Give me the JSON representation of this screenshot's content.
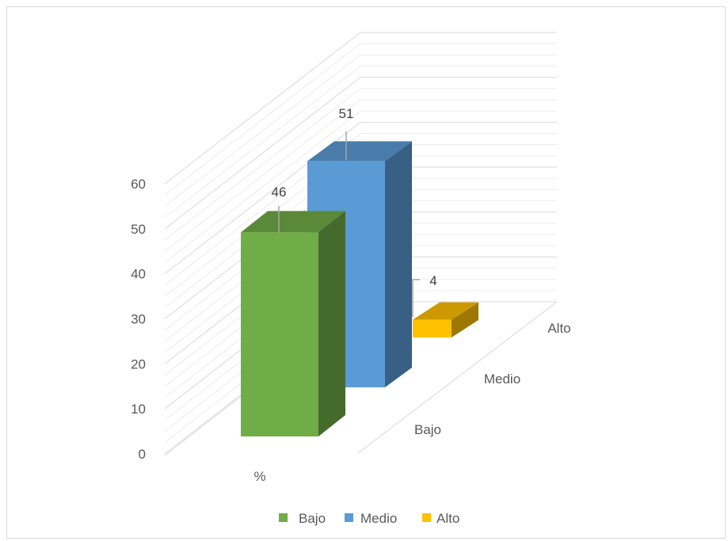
{
  "chart_data": {
    "type": "bar",
    "subtype": "3d-column",
    "categories": [
      "%"
    ],
    "series": [
      {
        "name": "Bajo",
        "values": [
          46
        ],
        "color": "#70ad47"
      },
      {
        "name": "Medio",
        "values": [
          51
        ],
        "color": "#5b9bd5"
      },
      {
        "name": "Alto",
        "values": [
          4
        ],
        "color": "#ffc000"
      }
    ],
    "depth_labels": [
      "Bajo",
      "Medio",
      "Alto"
    ],
    "data_labels": [
      "46",
      "51",
      "4"
    ],
    "y_ticks": [
      "0",
      "10",
      "20",
      "30",
      "40",
      "50",
      "60"
    ],
    "ylim": [
      0,
      60
    ],
    "grid": true,
    "legend_position": "bottom",
    "title": "",
    "xlabel": "",
    "ylabel": ""
  }
}
